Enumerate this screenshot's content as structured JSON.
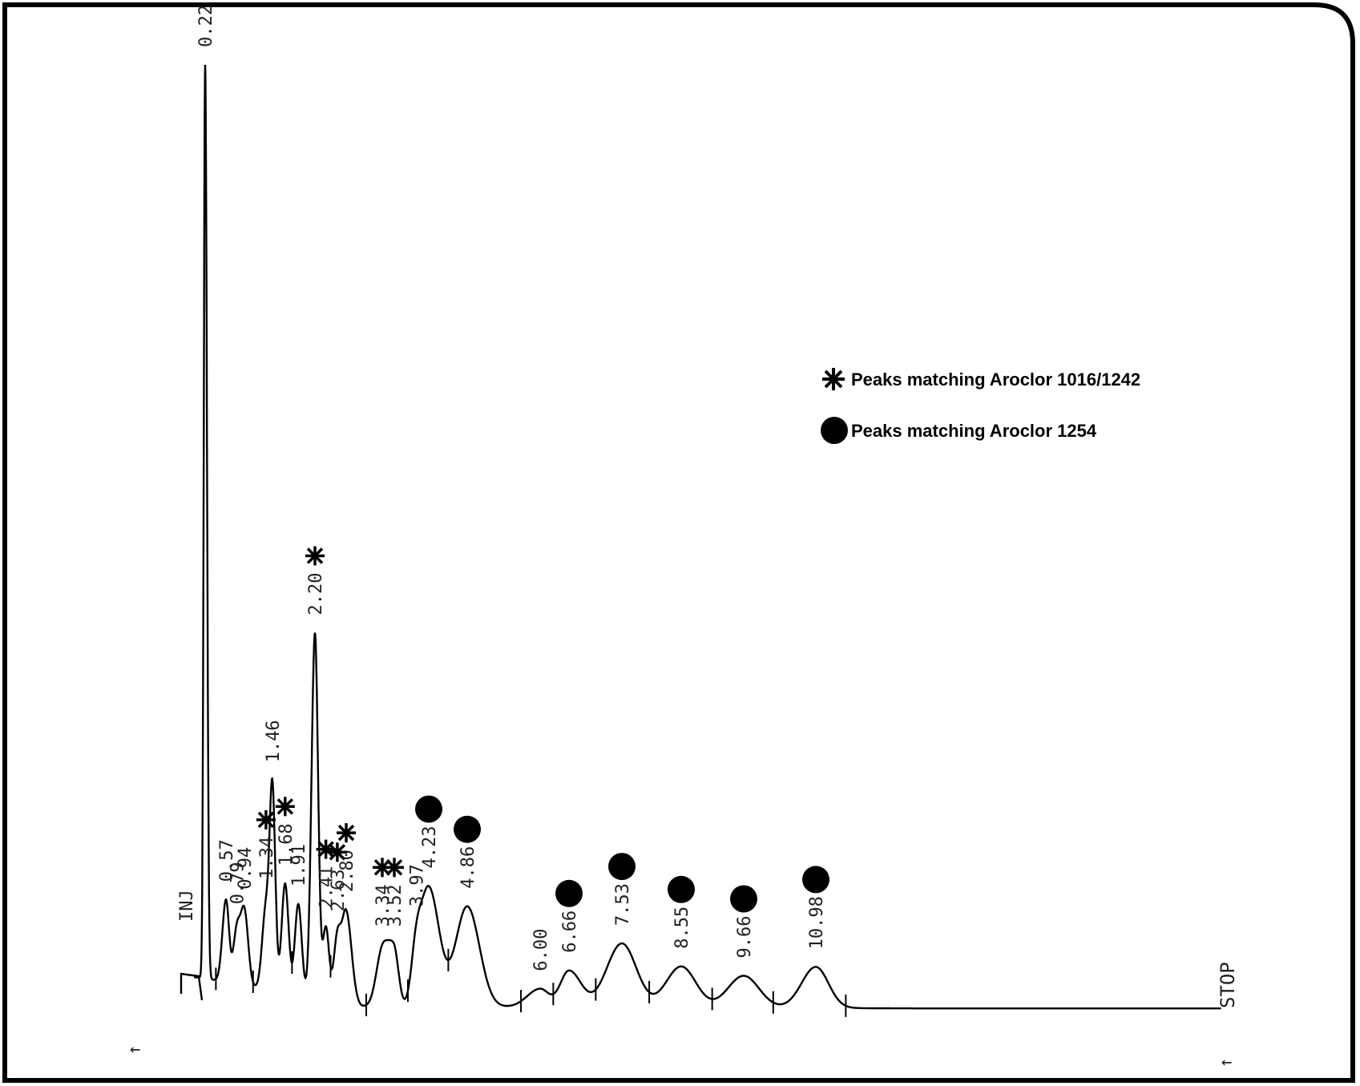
{
  "chart_data": {
    "type": "line",
    "title": "",
    "xlabel": "",
    "ylabel": "",
    "markers": {
      "inject": "INJ",
      "stop": "STOP"
    },
    "legend": {
      "placement": "right-middle",
      "items": [
        {
          "symbol": "asterisk",
          "label": "Peaks matching Aroclor 1016/1242"
        },
        {
          "symbol": "dot",
          "label": "Peaks matching Aroclor 1254"
        }
      ]
    },
    "xlim": [
      -0.3,
      20.0
    ],
    "ylim": [
      0,
      100
    ],
    "peaks": [
      {
        "label": "0.22",
        "rt": 0.22,
        "height": 100,
        "width": 0.03,
        "mark": "none"
      },
      {
        "label": "0.57",
        "rt": 0.57,
        "height": 9,
        "width": 0.06,
        "mark": "none"
      },
      {
        "label": "0.79",
        "rt": 0.79,
        "height": 6,
        "width": 0.07,
        "mark": "none"
      },
      {
        "label": "0.94",
        "rt": 0.94,
        "height": 8,
        "width": 0.07,
        "mark": "none"
      },
      {
        "label": "1.34",
        "rt": 1.34,
        "height": 9,
        "width": 0.07,
        "mark": "asterisk"
      },
      {
        "label": "1.46",
        "rt": 1.46,
        "height": 21,
        "width": 0.05,
        "mark": "none"
      },
      {
        "label": "1.68",
        "rt": 1.68,
        "height": 12,
        "width": 0.06,
        "mark": "asterisk"
      },
      {
        "label": "1.91",
        "rt": 1.91,
        "height": 10,
        "width": 0.06,
        "mark": "none"
      },
      {
        "label": "2.20",
        "rt": 2.2,
        "height": 40,
        "width": 0.06,
        "mark": "asterisk"
      },
      {
        "label": "2.41",
        "rt": 2.41,
        "height": 8,
        "width": 0.06,
        "mark": "asterisk"
      },
      {
        "label": "2.63",
        "rt": 2.63,
        "height": 7,
        "width": 0.07,
        "mark": "asterisk"
      },
      {
        "label": "2.80",
        "rt": 2.8,
        "height": 10,
        "width": 0.08,
        "mark": "asterisk"
      },
      {
        "label": "3.34",
        "rt": 3.34,
        "height": 6,
        "width": 0.09,
        "mark": "asterisk"
      },
      {
        "label": "3.52",
        "rt": 3.52,
        "height": 6,
        "width": 0.09,
        "mark": "asterisk"
      },
      {
        "label": "3.97",
        "rt": 3.97,
        "height": 5,
        "width": 0.1,
        "mark": "none"
      },
      {
        "label": "4.23",
        "rt": 4.23,
        "height": 13,
        "width": 0.17,
        "mark": "dot"
      },
      {
        "label": "4.86",
        "rt": 4.86,
        "height": 11,
        "width": 0.19,
        "mark": "dot"
      },
      {
        "label": "6.00",
        "rt": 6.0,
        "height": 2,
        "width": 0.2,
        "mark": "none"
      },
      {
        "label": "6.66",
        "rt": 6.66,
        "height": 4,
        "width": 0.2,
        "mark": "dot"
      },
      {
        "label": "7.53",
        "rt": 7.53,
        "height": 7,
        "width": 0.25,
        "mark": "dot"
      },
      {
        "label": "8.55",
        "rt": 8.55,
        "height": 4.5,
        "width": 0.26,
        "mark": "dot"
      },
      {
        "label": "9.66",
        "rt": 9.66,
        "height": 3.5,
        "width": 0.28,
        "mark": "dot"
      },
      {
        "label": "10.98",
        "rt": 10.98,
        "height": 4.5,
        "width": 0.26,
        "mark": "dot"
      }
    ]
  },
  "colors": {
    "ink": "#000000",
    "paper": "#ffffff"
  }
}
